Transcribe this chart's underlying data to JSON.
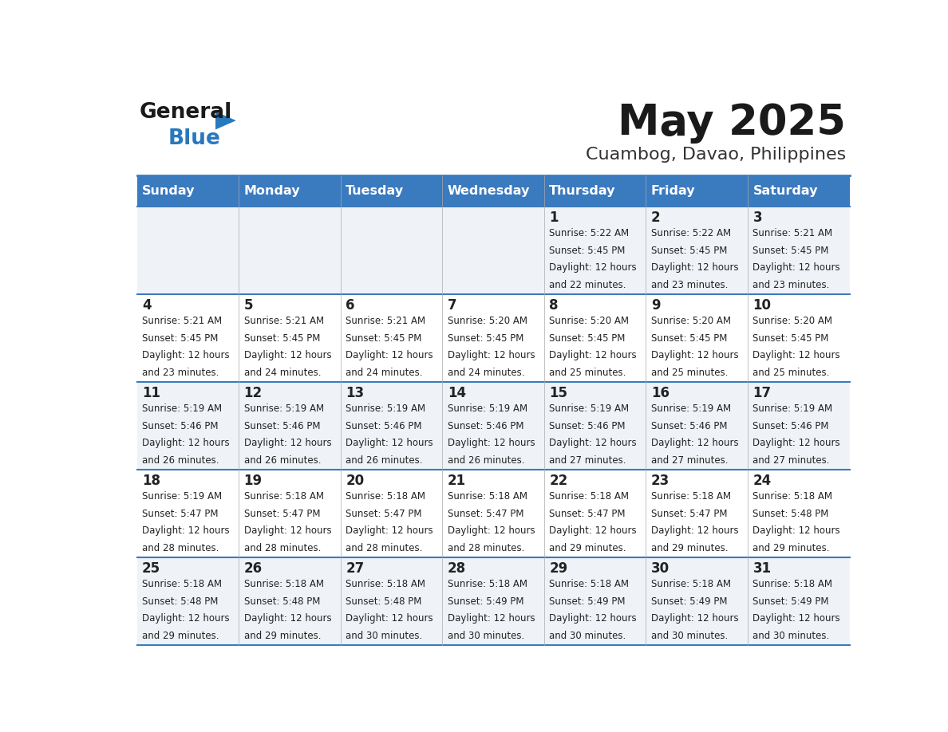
{
  "title": "May 2025",
  "subtitle": "Cuambog, Davao, Philippines",
  "header_color": "#3a7abf",
  "header_text_color": "#ffffff",
  "day_names": [
    "Sunday",
    "Monday",
    "Tuesday",
    "Wednesday",
    "Thursday",
    "Friday",
    "Saturday"
  ],
  "row_bg_colors": [
    "#eff3f8",
    "#ffffff"
  ],
  "border_color": "#3a7abf",
  "text_color": "#222222",
  "calendar_data": [
    [
      {
        "day": "",
        "sunrise": "",
        "sunset": "",
        "daylight": ""
      },
      {
        "day": "",
        "sunrise": "",
        "sunset": "",
        "daylight": ""
      },
      {
        "day": "",
        "sunrise": "",
        "sunset": "",
        "daylight": ""
      },
      {
        "day": "",
        "sunrise": "",
        "sunset": "",
        "daylight": ""
      },
      {
        "day": "1",
        "sunrise": "5:22 AM",
        "sunset": "5:45 PM",
        "daylight": "12 hours and 22 minutes."
      },
      {
        "day": "2",
        "sunrise": "5:22 AM",
        "sunset": "5:45 PM",
        "daylight": "12 hours and 23 minutes."
      },
      {
        "day": "3",
        "sunrise": "5:21 AM",
        "sunset": "5:45 PM",
        "daylight": "12 hours and 23 minutes."
      }
    ],
    [
      {
        "day": "4",
        "sunrise": "5:21 AM",
        "sunset": "5:45 PM",
        "daylight": "12 hours and 23 minutes."
      },
      {
        "day": "5",
        "sunrise": "5:21 AM",
        "sunset": "5:45 PM",
        "daylight": "12 hours and 24 minutes."
      },
      {
        "day": "6",
        "sunrise": "5:21 AM",
        "sunset": "5:45 PM",
        "daylight": "12 hours and 24 minutes."
      },
      {
        "day": "7",
        "sunrise": "5:20 AM",
        "sunset": "5:45 PM",
        "daylight": "12 hours and 24 minutes."
      },
      {
        "day": "8",
        "sunrise": "5:20 AM",
        "sunset": "5:45 PM",
        "daylight": "12 hours and 25 minutes."
      },
      {
        "day": "9",
        "sunrise": "5:20 AM",
        "sunset": "5:45 PM",
        "daylight": "12 hours and 25 minutes."
      },
      {
        "day": "10",
        "sunrise": "5:20 AM",
        "sunset": "5:45 PM",
        "daylight": "12 hours and 25 minutes."
      }
    ],
    [
      {
        "day": "11",
        "sunrise": "5:19 AM",
        "sunset": "5:46 PM",
        "daylight": "12 hours and 26 minutes."
      },
      {
        "day": "12",
        "sunrise": "5:19 AM",
        "sunset": "5:46 PM",
        "daylight": "12 hours and 26 minutes."
      },
      {
        "day": "13",
        "sunrise": "5:19 AM",
        "sunset": "5:46 PM",
        "daylight": "12 hours and 26 minutes."
      },
      {
        "day": "14",
        "sunrise": "5:19 AM",
        "sunset": "5:46 PM",
        "daylight": "12 hours and 26 minutes."
      },
      {
        "day": "15",
        "sunrise": "5:19 AM",
        "sunset": "5:46 PM",
        "daylight": "12 hours and 27 minutes."
      },
      {
        "day": "16",
        "sunrise": "5:19 AM",
        "sunset": "5:46 PM",
        "daylight": "12 hours and 27 minutes."
      },
      {
        "day": "17",
        "sunrise": "5:19 AM",
        "sunset": "5:46 PM",
        "daylight": "12 hours and 27 minutes."
      }
    ],
    [
      {
        "day": "18",
        "sunrise": "5:19 AM",
        "sunset": "5:47 PM",
        "daylight": "12 hours and 28 minutes."
      },
      {
        "day": "19",
        "sunrise": "5:18 AM",
        "sunset": "5:47 PM",
        "daylight": "12 hours and 28 minutes."
      },
      {
        "day": "20",
        "sunrise": "5:18 AM",
        "sunset": "5:47 PM",
        "daylight": "12 hours and 28 minutes."
      },
      {
        "day": "21",
        "sunrise": "5:18 AM",
        "sunset": "5:47 PM",
        "daylight": "12 hours and 28 minutes."
      },
      {
        "day": "22",
        "sunrise": "5:18 AM",
        "sunset": "5:47 PM",
        "daylight": "12 hours and 29 minutes."
      },
      {
        "day": "23",
        "sunrise": "5:18 AM",
        "sunset": "5:47 PM",
        "daylight": "12 hours and 29 minutes."
      },
      {
        "day": "24",
        "sunrise": "5:18 AM",
        "sunset": "5:48 PM",
        "daylight": "12 hours and 29 minutes."
      }
    ],
    [
      {
        "day": "25",
        "sunrise": "5:18 AM",
        "sunset": "5:48 PM",
        "daylight": "12 hours and 29 minutes."
      },
      {
        "day": "26",
        "sunrise": "5:18 AM",
        "sunset": "5:48 PM",
        "daylight": "12 hours and 29 minutes."
      },
      {
        "day": "27",
        "sunrise": "5:18 AM",
        "sunset": "5:48 PM",
        "daylight": "12 hours and 30 minutes."
      },
      {
        "day": "28",
        "sunrise": "5:18 AM",
        "sunset": "5:49 PM",
        "daylight": "12 hours and 30 minutes."
      },
      {
        "day": "29",
        "sunrise": "5:18 AM",
        "sunset": "5:49 PM",
        "daylight": "12 hours and 30 minutes."
      },
      {
        "day": "30",
        "sunrise": "5:18 AM",
        "sunset": "5:49 PM",
        "daylight": "12 hours and 30 minutes."
      },
      {
        "day": "31",
        "sunrise": "5:18 AM",
        "sunset": "5:49 PM",
        "daylight": "12 hours and 30 minutes."
      }
    ]
  ]
}
